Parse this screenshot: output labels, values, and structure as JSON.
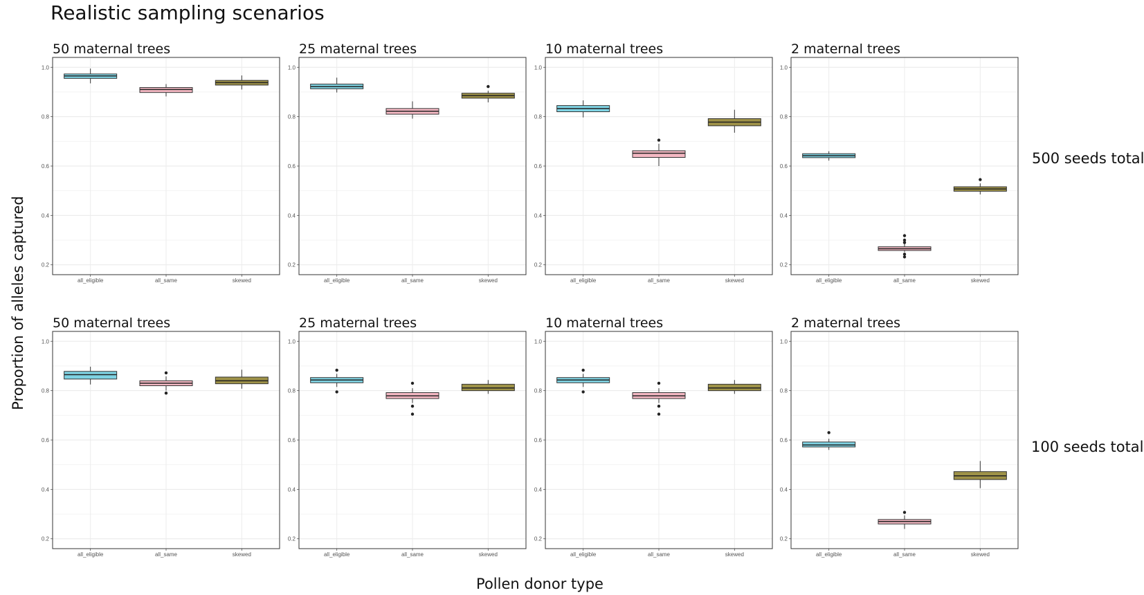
{
  "title": "Realistic sampling scenarios",
  "ylabel": "Proportion of alleles captured",
  "xlabel": "Pollen donor type",
  "row_labels": [
    "500 seeds total",
    "100 seeds total"
  ],
  "colors": {
    "all_eligible": "#7fd3e3",
    "all_same": "#f4b8c3",
    "skewed": "#9e9248"
  },
  "chart_data": [
    {
      "type": "boxplot",
      "title": "50 maternal trees",
      "row": "500 seeds total",
      "categories": [
        "all_eligible",
        "all_same",
        "skewed"
      ],
      "yticks": [
        0.2,
        0.4,
        0.6,
        0.8,
        1.0
      ],
      "ylim": [
        0.16,
        1.04
      ],
      "grid": true,
      "boxes": [
        {
          "category": "all_eligible",
          "lower_whisker": 0.935,
          "q1": 0.955,
          "median": 0.965,
          "q3": 0.973,
          "upper_whisker": 0.995,
          "outliers": []
        },
        {
          "category": "all_same",
          "lower_whisker": 0.882,
          "q1": 0.898,
          "median": 0.91,
          "q3": 0.918,
          "upper_whisker": 0.932,
          "outliers": []
        },
        {
          "category": "skewed",
          "lower_whisker": 0.91,
          "q1": 0.928,
          "median": 0.938,
          "q3": 0.947,
          "upper_whisker": 0.967,
          "outliers": []
        }
      ]
    },
    {
      "type": "boxplot",
      "title": "25 maternal trees",
      "row": "500 seeds total",
      "categories": [
        "all_eligible",
        "all_same",
        "skewed"
      ],
      "yticks": [
        0.2,
        0.4,
        0.6,
        0.8,
        1.0
      ],
      "ylim": [
        0.16,
        1.04
      ],
      "grid": true,
      "boxes": [
        {
          "category": "all_eligible",
          "lower_whisker": 0.898,
          "q1": 0.913,
          "median": 0.922,
          "q3": 0.932,
          "upper_whisker": 0.958,
          "outliers": []
        },
        {
          "category": "all_same",
          "lower_whisker": 0.792,
          "q1": 0.81,
          "median": 0.822,
          "q3": 0.833,
          "upper_whisker": 0.862,
          "outliers": []
        },
        {
          "category": "skewed",
          "lower_whisker": 0.858,
          "q1": 0.875,
          "median": 0.885,
          "q3": 0.895,
          "upper_whisker": 0.905,
          "outliers": [
            0.922
          ]
        }
      ]
    },
    {
      "type": "boxplot",
      "title": "10 maternal trees",
      "row": "500 seeds total",
      "categories": [
        "all_eligible",
        "all_same",
        "skewed"
      ],
      "yticks": [
        0.2,
        0.4,
        0.6,
        0.8,
        1.0
      ],
      "ylim": [
        0.16,
        1.04
      ],
      "grid": true,
      "boxes": [
        {
          "category": "all_eligible",
          "lower_whisker": 0.797,
          "q1": 0.82,
          "median": 0.833,
          "q3": 0.845,
          "upper_whisker": 0.866,
          "outliers": []
        },
        {
          "category": "all_same",
          "lower_whisker": 0.6,
          "q1": 0.635,
          "median": 0.652,
          "q3": 0.662,
          "upper_whisker": 0.69,
          "outliers": [
            0.705
          ]
        },
        {
          "category": "skewed",
          "lower_whisker": 0.735,
          "q1": 0.763,
          "median": 0.778,
          "q3": 0.792,
          "upper_whisker": 0.828,
          "outliers": []
        }
      ]
    },
    {
      "type": "boxplot",
      "title": "2 maternal trees",
      "row": "500 seeds total",
      "categories": [
        "all_eligible",
        "all_same",
        "skewed"
      ],
      "yticks": [
        0.2,
        0.4,
        0.6,
        0.8,
        1.0
      ],
      "ylim": [
        0.16,
        1.04
      ],
      "grid": true,
      "boxes": [
        {
          "category": "all_eligible",
          "lower_whisker": 0.622,
          "q1": 0.634,
          "median": 0.642,
          "q3": 0.65,
          "upper_whisker": 0.66,
          "outliers": []
        },
        {
          "category": "all_same",
          "lower_whisker": 0.252,
          "q1": 0.258,
          "median": 0.265,
          "q3": 0.273,
          "upper_whisker": 0.285,
          "outliers": [
            0.232,
            0.243,
            0.29,
            0.3,
            0.318
          ]
        },
        {
          "category": "skewed",
          "lower_whisker": 0.485,
          "q1": 0.498,
          "median": 0.507,
          "q3": 0.516,
          "upper_whisker": 0.53,
          "outliers": [
            0.545
          ]
        }
      ]
    },
    {
      "type": "boxplot",
      "title": "50 maternal trees",
      "row": "100 seeds total",
      "categories": [
        "all_eligible",
        "all_same",
        "skewed"
      ],
      "yticks": [
        0.2,
        0.4,
        0.6,
        0.8,
        1.0
      ],
      "ylim": [
        0.16,
        1.04
      ],
      "grid": true,
      "boxes": [
        {
          "category": "all_eligible",
          "lower_whisker": 0.825,
          "q1": 0.847,
          "median": 0.865,
          "q3": 0.878,
          "upper_whisker": 0.897,
          "outliers": []
        },
        {
          "category": "all_same",
          "lower_whisker": 0.8,
          "q1": 0.82,
          "median": 0.83,
          "q3": 0.84,
          "upper_whisker": 0.858,
          "outliers": [
            0.79,
            0.872
          ]
        },
        {
          "category": "skewed",
          "lower_whisker": 0.808,
          "q1": 0.828,
          "median": 0.84,
          "q3": 0.855,
          "upper_whisker": 0.885,
          "outliers": []
        }
      ]
    },
    {
      "type": "boxplot",
      "title": "25 maternal trees",
      "row": "100 seeds total",
      "categories": [
        "all_eligible",
        "all_same",
        "skewed"
      ],
      "yticks": [
        0.2,
        0.4,
        0.6,
        0.8,
        1.0
      ],
      "ylim": [
        0.16,
        1.04
      ],
      "grid": true,
      "boxes": [
        {
          "category": "all_eligible",
          "lower_whisker": 0.815,
          "q1": 0.832,
          "median": 0.843,
          "q3": 0.853,
          "upper_whisker": 0.868,
          "outliers": [
            0.795,
            0.883
          ]
        },
        {
          "category": "all_same",
          "lower_whisker": 0.75,
          "q1": 0.768,
          "median": 0.779,
          "q3": 0.792,
          "upper_whisker": 0.81,
          "outliers": [
            0.705,
            0.737,
            0.83
          ]
        },
        {
          "category": "skewed",
          "lower_whisker": 0.787,
          "q1": 0.8,
          "median": 0.811,
          "q3": 0.826,
          "upper_whisker": 0.843,
          "outliers": []
        }
      ]
    },
    {
      "type": "boxplot",
      "title": "10 maternal trees",
      "row": "100 seeds total",
      "categories": [
        "all_eligible",
        "all_same",
        "skewed"
      ],
      "yticks": [
        0.2,
        0.4,
        0.6,
        0.8,
        1.0
      ],
      "ylim": [
        0.16,
        1.04
      ],
      "grid": true,
      "boxes": [
        {
          "category": "all_eligible",
          "lower_whisker": 0.815,
          "q1": 0.832,
          "median": 0.843,
          "q3": 0.853,
          "upper_whisker": 0.868,
          "outliers": [
            0.795,
            0.883
          ]
        },
        {
          "category": "all_same",
          "lower_whisker": 0.75,
          "q1": 0.768,
          "median": 0.779,
          "q3": 0.792,
          "upper_whisker": 0.81,
          "outliers": [
            0.705,
            0.737,
            0.83
          ]
        },
        {
          "category": "skewed",
          "lower_whisker": 0.787,
          "q1": 0.8,
          "median": 0.811,
          "q3": 0.826,
          "upper_whisker": 0.843,
          "outliers": []
        }
      ]
    },
    {
      "type": "boxplot",
      "title": "2 maternal trees",
      "row": "100 seeds total",
      "categories": [
        "all_eligible",
        "all_same",
        "skewed"
      ],
      "yticks": [
        0.2,
        0.4,
        0.6,
        0.8,
        1.0
      ],
      "ylim": [
        0.16,
        1.04
      ],
      "grid": true,
      "boxes": [
        {
          "category": "all_eligible",
          "lower_whisker": 0.56,
          "q1": 0.572,
          "median": 0.58,
          "q3": 0.592,
          "upper_whisker": 0.605,
          "outliers": [
            0.63
          ]
        },
        {
          "category": "all_same",
          "lower_whisker": 0.24,
          "q1": 0.26,
          "median": 0.27,
          "q3": 0.278,
          "upper_whisker": 0.295,
          "outliers": [
            0.307
          ]
        },
        {
          "category": "skewed",
          "lower_whisker": 0.405,
          "q1": 0.44,
          "median": 0.455,
          "q3": 0.472,
          "upper_whisker": 0.515,
          "outliers": []
        }
      ]
    }
  ]
}
